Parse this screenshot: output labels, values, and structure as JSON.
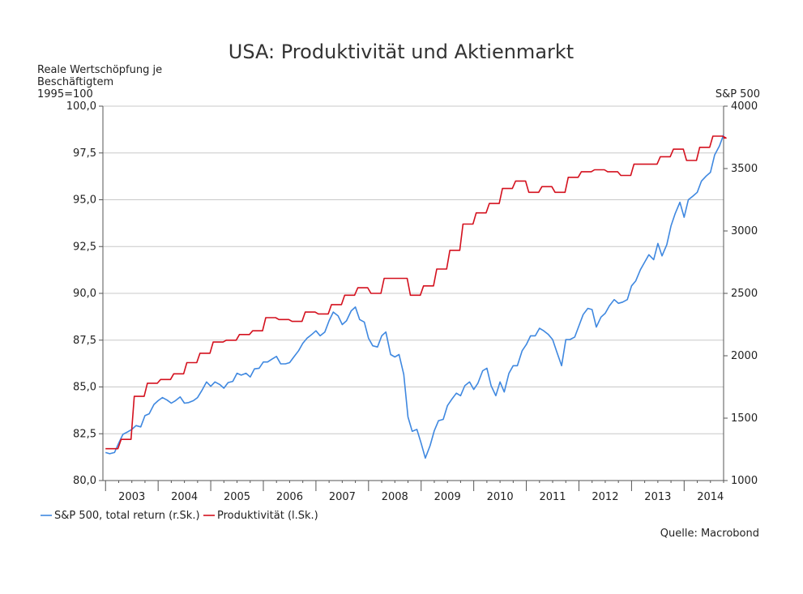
{
  "chart_data": {
    "type": "line",
    "title": "USA: Produktivität und Aktienmarkt",
    "ylabel_left": [
      "Reale Wertschöpfung je",
      "Beschäftigtem",
      "1995=100"
    ],
    "ylabel_right": "S&P 500",
    "ylim_left": [
      80,
      100
    ],
    "ylim_right": [
      1000,
      4000
    ],
    "left_ticks": [
      "80,0",
      "82,5",
      "85,0",
      "87,5",
      "90,0",
      "92,5",
      "95,0",
      "97,5",
      "100,0"
    ],
    "right_ticks": [
      "1000",
      "1500",
      "2000",
      "2500",
      "3000",
      "3500",
      "4000"
    ],
    "x_labels": [
      "2003",
      "2004",
      "2005",
      "2006",
      "2007",
      "2008",
      "2009",
      "2010",
      "2011",
      "2012",
      "2013",
      "2014"
    ],
    "xlim": [
      2002.95,
      2014.75
    ],
    "grid": true,
    "legend_position": "bottom-left",
    "source": "Quelle: Macrobond",
    "series": [
      {
        "name": "S&P 500, total return (r.Sk.)",
        "axis": "right",
        "color": "#3f88e0",
        "points": [
          [
            2003.0,
            1225
          ],
          [
            2003.08,
            1215
          ],
          [
            2003.17,
            1225
          ],
          [
            2003.25,
            1300
          ],
          [
            2003.33,
            1370
          ],
          [
            2003.42,
            1390
          ],
          [
            2003.5,
            1410
          ],
          [
            2003.58,
            1440
          ],
          [
            2003.67,
            1430
          ],
          [
            2003.75,
            1520
          ],
          [
            2003.83,
            1535
          ],
          [
            2003.92,
            1610
          ],
          [
            2004.0,
            1640
          ],
          [
            2004.08,
            1665
          ],
          [
            2004.17,
            1645
          ],
          [
            2004.25,
            1620
          ],
          [
            2004.33,
            1640
          ],
          [
            2004.42,
            1670
          ],
          [
            2004.5,
            1620
          ],
          [
            2004.58,
            1625
          ],
          [
            2004.67,
            1640
          ],
          [
            2004.75,
            1665
          ],
          [
            2004.83,
            1720
          ],
          [
            2004.92,
            1790
          ],
          [
            2005.0,
            1755
          ],
          [
            2005.08,
            1790
          ],
          [
            2005.17,
            1770
          ],
          [
            2005.25,
            1740
          ],
          [
            2005.33,
            1785
          ],
          [
            2005.42,
            1795
          ],
          [
            2005.5,
            1860
          ],
          [
            2005.58,
            1845
          ],
          [
            2005.67,
            1860
          ],
          [
            2005.75,
            1830
          ],
          [
            2005.83,
            1895
          ],
          [
            2005.92,
            1900
          ],
          [
            2006.0,
            1950
          ],
          [
            2006.08,
            1950
          ],
          [
            2006.17,
            1975
          ],
          [
            2006.25,
            1995
          ],
          [
            2006.33,
            1935
          ],
          [
            2006.42,
            1935
          ],
          [
            2006.5,
            1945
          ],
          [
            2006.58,
            1990
          ],
          [
            2006.67,
            2040
          ],
          [
            2006.75,
            2100
          ],
          [
            2006.83,
            2140
          ],
          [
            2006.92,
            2170
          ],
          [
            2007.0,
            2200
          ],
          [
            2007.08,
            2160
          ],
          [
            2007.17,
            2190
          ],
          [
            2007.25,
            2280
          ],
          [
            2007.33,
            2350
          ],
          [
            2007.42,
            2320
          ],
          [
            2007.5,
            2250
          ],
          [
            2007.58,
            2280
          ],
          [
            2007.67,
            2360
          ],
          [
            2007.75,
            2390
          ],
          [
            2007.83,
            2290
          ],
          [
            2007.92,
            2270
          ],
          [
            2008.0,
            2140
          ],
          [
            2008.08,
            2080
          ],
          [
            2008.17,
            2070
          ],
          [
            2008.25,
            2160
          ],
          [
            2008.33,
            2190
          ],
          [
            2008.42,
            2010
          ],
          [
            2008.5,
            1990
          ],
          [
            2008.58,
            2010
          ],
          [
            2008.67,
            1850
          ],
          [
            2008.75,
            1510
          ],
          [
            2008.83,
            1395
          ],
          [
            2008.92,
            1410
          ],
          [
            2009.0,
            1300
          ],
          [
            2009.08,
            1180
          ],
          [
            2009.17,
            1280
          ],
          [
            2009.25,
            1400
          ],
          [
            2009.33,
            1480
          ],
          [
            2009.42,
            1490
          ],
          [
            2009.5,
            1600
          ],
          [
            2009.58,
            1650
          ],
          [
            2009.67,
            1700
          ],
          [
            2009.75,
            1680
          ],
          [
            2009.83,
            1760
          ],
          [
            2009.92,
            1790
          ],
          [
            2010.0,
            1730
          ],
          [
            2010.08,
            1780
          ],
          [
            2010.17,
            1880
          ],
          [
            2010.25,
            1900
          ],
          [
            2010.33,
            1760
          ],
          [
            2010.42,
            1680
          ],
          [
            2010.5,
            1790
          ],
          [
            2010.58,
            1710
          ],
          [
            2010.67,
            1860
          ],
          [
            2010.75,
            1920
          ],
          [
            2010.83,
            1920
          ],
          [
            2010.92,
            2040
          ],
          [
            2011.0,
            2090
          ],
          [
            2011.08,
            2160
          ],
          [
            2011.17,
            2160
          ],
          [
            2011.25,
            2220
          ],
          [
            2011.33,
            2200
          ],
          [
            2011.42,
            2170
          ],
          [
            2011.5,
            2130
          ],
          [
            2011.58,
            2030
          ],
          [
            2011.67,
            1920
          ],
          [
            2011.75,
            2130
          ],
          [
            2011.83,
            2130
          ],
          [
            2011.92,
            2150
          ],
          [
            2012.0,
            2240
          ],
          [
            2012.08,
            2330
          ],
          [
            2012.17,
            2380
          ],
          [
            2012.25,
            2370
          ],
          [
            2012.33,
            2230
          ],
          [
            2012.42,
            2310
          ],
          [
            2012.5,
            2340
          ],
          [
            2012.58,
            2400
          ],
          [
            2012.67,
            2450
          ],
          [
            2012.75,
            2420
          ],
          [
            2012.83,
            2430
          ],
          [
            2012.92,
            2450
          ],
          [
            2013.0,
            2560
          ],
          [
            2013.08,
            2600
          ],
          [
            2013.17,
            2690
          ],
          [
            2013.25,
            2750
          ],
          [
            2013.33,
            2810
          ],
          [
            2013.42,
            2770
          ],
          [
            2013.5,
            2900
          ],
          [
            2013.58,
            2800
          ],
          [
            2013.67,
            2890
          ],
          [
            2013.75,
            3040
          ],
          [
            2013.83,
            3140
          ],
          [
            2013.92,
            3230
          ],
          [
            2014.0,
            3110
          ],
          [
            2014.08,
            3250
          ],
          [
            2014.17,
            3280
          ],
          [
            2014.25,
            3310
          ],
          [
            2014.33,
            3400
          ],
          [
            2014.42,
            3440
          ],
          [
            2014.5,
            3470
          ],
          [
            2014.58,
            3610
          ],
          [
            2014.67,
            3680
          ],
          [
            2014.75,
            3770
          ]
        ]
      },
      {
        "name": "Produktivität (l.Sk.)",
        "axis": "left",
        "color": "#d4111e",
        "quarterly": true,
        "points": [
          [
            2003.0,
            81.7
          ],
          [
            2003.25,
            82.2
          ],
          [
            2003.5,
            84.5
          ],
          [
            2003.75,
            85.2
          ],
          [
            2004.0,
            85.4
          ],
          [
            2004.25,
            85.7
          ],
          [
            2004.5,
            86.3
          ],
          [
            2004.75,
            86.8
          ],
          [
            2005.0,
            87.4
          ],
          [
            2005.25,
            87.5
          ],
          [
            2005.5,
            87.8
          ],
          [
            2005.75,
            88.0
          ],
          [
            2006.0,
            88.7
          ],
          [
            2006.25,
            88.6
          ],
          [
            2006.5,
            88.5
          ],
          [
            2006.75,
            89.0
          ],
          [
            2007.0,
            88.9
          ],
          [
            2007.25,
            89.4
          ],
          [
            2007.5,
            89.9
          ],
          [
            2007.75,
            90.3
          ],
          [
            2008.0,
            90.0
          ],
          [
            2008.25,
            90.8
          ],
          [
            2008.5,
            90.8
          ],
          [
            2008.75,
            89.9
          ],
          [
            2009.0,
            90.4
          ],
          [
            2009.25,
            91.3
          ],
          [
            2009.5,
            92.3
          ],
          [
            2009.75,
            93.7
          ],
          [
            2010.0,
            94.3
          ],
          [
            2010.25,
            94.8
          ],
          [
            2010.5,
            95.6
          ],
          [
            2010.75,
            96.0
          ],
          [
            2011.0,
            95.4
          ],
          [
            2011.25,
            95.7
          ],
          [
            2011.5,
            95.4
          ],
          [
            2011.75,
            96.2
          ],
          [
            2012.0,
            96.5
          ],
          [
            2012.25,
            96.6
          ],
          [
            2012.5,
            96.5
          ],
          [
            2012.75,
            96.3
          ],
          [
            2013.0,
            96.9
          ],
          [
            2013.25,
            96.9
          ],
          [
            2013.5,
            97.3
          ],
          [
            2013.75,
            97.7
          ],
          [
            2014.0,
            97.1
          ],
          [
            2014.25,
            97.8
          ],
          [
            2014.5,
            98.4
          ],
          [
            2014.75,
            98.3
          ]
        ]
      }
    ]
  }
}
